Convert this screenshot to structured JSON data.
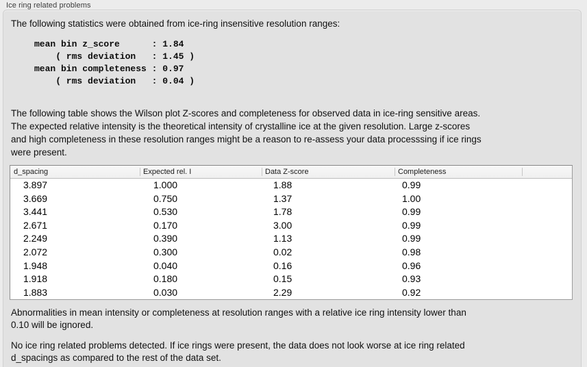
{
  "panel": {
    "title": "Ice ring related problems",
    "intro": "The following statistics were obtained from ice-ring insensitive resolution ranges:",
    "stats_block": "mean bin z_score      : 1.84\n    ( rms deviation   : 1.45 )\nmean bin completeness : 0.97\n    ( rms deviation   : 0.04 )",
    "stats": {
      "mean_bin_z_score": "1.84",
      "z_score_rms_deviation": "1.45",
      "mean_bin_completeness": "0.97",
      "completeness_rms_deviation": "0.04"
    },
    "table_caption": "The following table shows the Wilson plot Z-scores and completeness for observed data in ice-ring sensitive areas.\nThe expected relative intensity is the theoretical intensity of crystalline ice at the given resolution. Large z-scores\nand high completeness in these resolution ranges might be a reason to re-assess your data processsing if ice rings\nwere present.",
    "note_ignore": "Abnormalities in mean intensity or completeness at resolution ranges with a relative ice ring intensity lower than\n0.10 will be ignored.",
    "conclusion": "No ice ring related problems detected. If ice rings were present, the data does not look worse at ice ring related\nd_spacings as compared to the rest of the data set."
  },
  "table": {
    "columns": [
      "d_spacing",
      "Expected rel. I",
      "Data Z-score",
      "Completeness"
    ],
    "rows": [
      [
        "3.897",
        "1.000",
        "1.88",
        "0.99"
      ],
      [
        "3.669",
        "0.750",
        "1.37",
        "1.00"
      ],
      [
        "3.441",
        "0.530",
        "1.78",
        "0.99"
      ],
      [
        "2.671",
        "0.170",
        "3.00",
        "0.99"
      ],
      [
        "2.249",
        "0.390",
        "1.13",
        "0.99"
      ],
      [
        "2.072",
        "0.300",
        "0.02",
        "0.98"
      ],
      [
        "1.948",
        "0.040",
        "0.16",
        "0.96"
      ],
      [
        "1.918",
        "0.180",
        "0.15",
        "0.93"
      ],
      [
        "1.883",
        "0.030",
        "2.29",
        "0.92"
      ]
    ]
  },
  "colors": {
    "outer_background": "#ececec",
    "panel_background": "#e2e2e2",
    "table_background": "#ffffff",
    "table_border": "#8f8f8f",
    "header_row_background": "#f4f4f4"
  }
}
